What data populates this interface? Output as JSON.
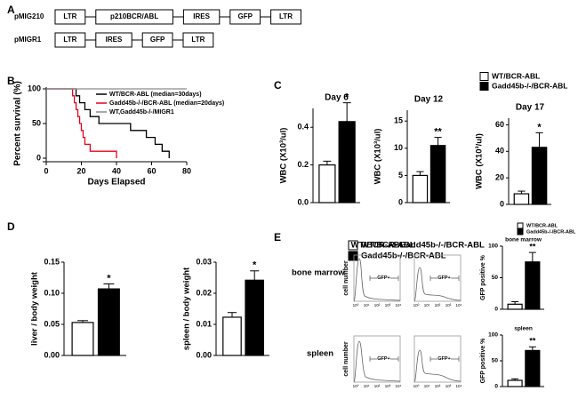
{
  "panel_labels": [
    "A",
    "B",
    "C",
    "D",
    "E"
  ],
  "constructs": [
    {
      "name": "pMIG210",
      "elements": [
        "LTR",
        "p210BCR/ABL",
        "IRES",
        "GFP",
        "LTR"
      ]
    },
    {
      "name": "pMIGR1",
      "elements": [
        "LTR",
        "IRES",
        "GFP",
        "LTR"
      ]
    }
  ],
  "legends": [
    {
      "entries": [
        {
          "label": "WT/BCR-ABL",
          "color": "#ffffff"
        },
        {
          "label": "Gadd45b-/-/BCR-ABL",
          "color": "#000000"
        }
      ]
    },
    {
      "entries": [
        {
          "label": "WT/BCR-ABL",
          "color": "#ffffff"
        },
        {
          "label": "Gadd45b-/-/BCR-ABL",
          "color": "#000000"
        }
      ]
    },
    {
      "entries": [
        {
          "label": "WT/BCR-ABL",
          "color": "#ffffff"
        },
        {
          "label": "Gadd45b-/-/BCR-ABL",
          "color": "#000000"
        }
      ]
    }
  ],
  "flow": {
    "columns": [
      "WT/BCR-ABL",
      "Gadd45b-/-/BCR-ABL"
    ],
    "rows": [
      "bone marrow",
      "spleen"
    ],
    "ylabel": "cell number",
    "gate": "GFP+",
    "xticks": [
      "10⁰",
      "10¹",
      "10²",
      "10³",
      "10⁴"
    ]
  },
  "chart_data": [
    {
      "type": "line",
      "step": true,
      "ylabel": "Percent survival (%)",
      "xlabel": "Days Elapsed",
      "xlim": [
        0,
        80
      ],
      "xticks": [
        0,
        20,
        40,
        60,
        80
      ],
      "ylim": [
        0,
        100
      ],
      "yticks": [
        0,
        50,
        100
      ],
      "series": [
        {
          "name": "WT/BCR-ABL (median=30days)",
          "color": "#000000",
          "x": [
            0,
            17,
            19,
            22,
            25,
            30,
            48,
            57,
            62,
            66,
            70
          ],
          "values": [
            100,
            90,
            80,
            70,
            60,
            50,
            40,
            30,
            20,
            10,
            0
          ]
        },
        {
          "name": "Gadd45b-/-/BCR-ABL (median=20days)",
          "color": "#e8001c",
          "x": [
            0,
            15,
            16,
            17,
            18,
            19,
            20,
            21,
            22,
            25,
            40
          ],
          "values": [
            100,
            90,
            80,
            70,
            60,
            50,
            40,
            30,
            20,
            10,
            0
          ]
        },
        {
          "name": "WT,Gadd45b-/-/MIGR1",
          "color": "#8c8c8c",
          "x": [
            0,
            80
          ],
          "values": [
            100,
            100
          ]
        }
      ]
    },
    {
      "type": "bar",
      "title": "Day 6",
      "ylabel": "WBC (X10³/ul)",
      "ylim": [
        0,
        0.5
      ],
      "yticks": [
        {
          "value": 0,
          "label": "0.0"
        },
        0.2,
        0.4
      ],
      "values": [
        0.2,
        0.43
      ],
      "errors": [
        0.02,
        0.1
      ],
      "colors": [
        "#ffffff",
        "#000000"
      ],
      "significance": "*"
    },
    {
      "type": "bar",
      "title": "Day 12",
      "ylabel": "WBC (X10³/ul)",
      "ylim": [
        0,
        17
      ],
      "yticks": [
        0,
        5,
        10,
        15
      ],
      "values": [
        5,
        10.5
      ],
      "errors": [
        0.7,
        1.5
      ],
      "colors": [
        "#ffffff",
        "#000000"
      ],
      "significance": "**"
    },
    {
      "type": "bar",
      "title": "Day 17",
      "ylabel": "WBC (X10³/ul)",
      "ylim": [
        0,
        65
      ],
      "yticks": [
        0,
        20,
        40,
        60
      ],
      "values": [
        8,
        43
      ],
      "errors": [
        2,
        11
      ],
      "colors": [
        "#ffffff",
        "#000000"
      ],
      "significance": "*"
    },
    {
      "type": "bar",
      "ylabel": "liver / body weight",
      "ylim": [
        0,
        0.15
      ],
      "yticks": [
        {
          "value": 0,
          "label": "0.00"
        },
        {
          "value": 0.05,
          "label": "0.05"
        },
        {
          "value": 0.1,
          "label": "0.10"
        },
        {
          "value": 0.15,
          "label": "0.15"
        }
      ],
      "values": [
        0.053,
        0.107
      ],
      "errors": [
        0.003,
        0.008
      ],
      "colors": [
        "#ffffff",
        "#000000"
      ],
      "significance": "*"
    },
    {
      "type": "bar",
      "ylabel": "spleen / body weight",
      "ylim": [
        0,
        0.03
      ],
      "yticks": [
        {
          "value": 0,
          "label": "0.00"
        },
        {
          "value": 0.01,
          "label": "0.01"
        },
        {
          "value": 0.02,
          "label": "0.02"
        },
        {
          "value": 0.03,
          "label": "0.03"
        }
      ],
      "values": [
        0.0123,
        0.0242
      ],
      "errors": [
        0.0015,
        0.003
      ],
      "colors": [
        "#ffffff",
        "#000000"
      ],
      "significance": "*"
    },
    {
      "type": "bar",
      "title": "bone marrow",
      "ylabel": "GFP positive %",
      "ylim": [
        0,
        100
      ],
      "yticks": [
        0,
        50,
        100
      ],
      "values": [
        8,
        75
      ],
      "errors": [
        4,
        15
      ],
      "colors": [
        "#ffffff",
        "#000000"
      ],
      "significance": "**"
    },
    {
      "type": "bar",
      "title": "spleen",
      "ylabel": "GFP positive %",
      "ylim": [
        0,
        100
      ],
      "yticks": [
        0,
        50,
        100
      ],
      "values": [
        12,
        70
      ],
      "errors": [
        3,
        7
      ],
      "colors": [
        "#ffffff",
        "#000000"
      ],
      "significance": "**"
    }
  ]
}
